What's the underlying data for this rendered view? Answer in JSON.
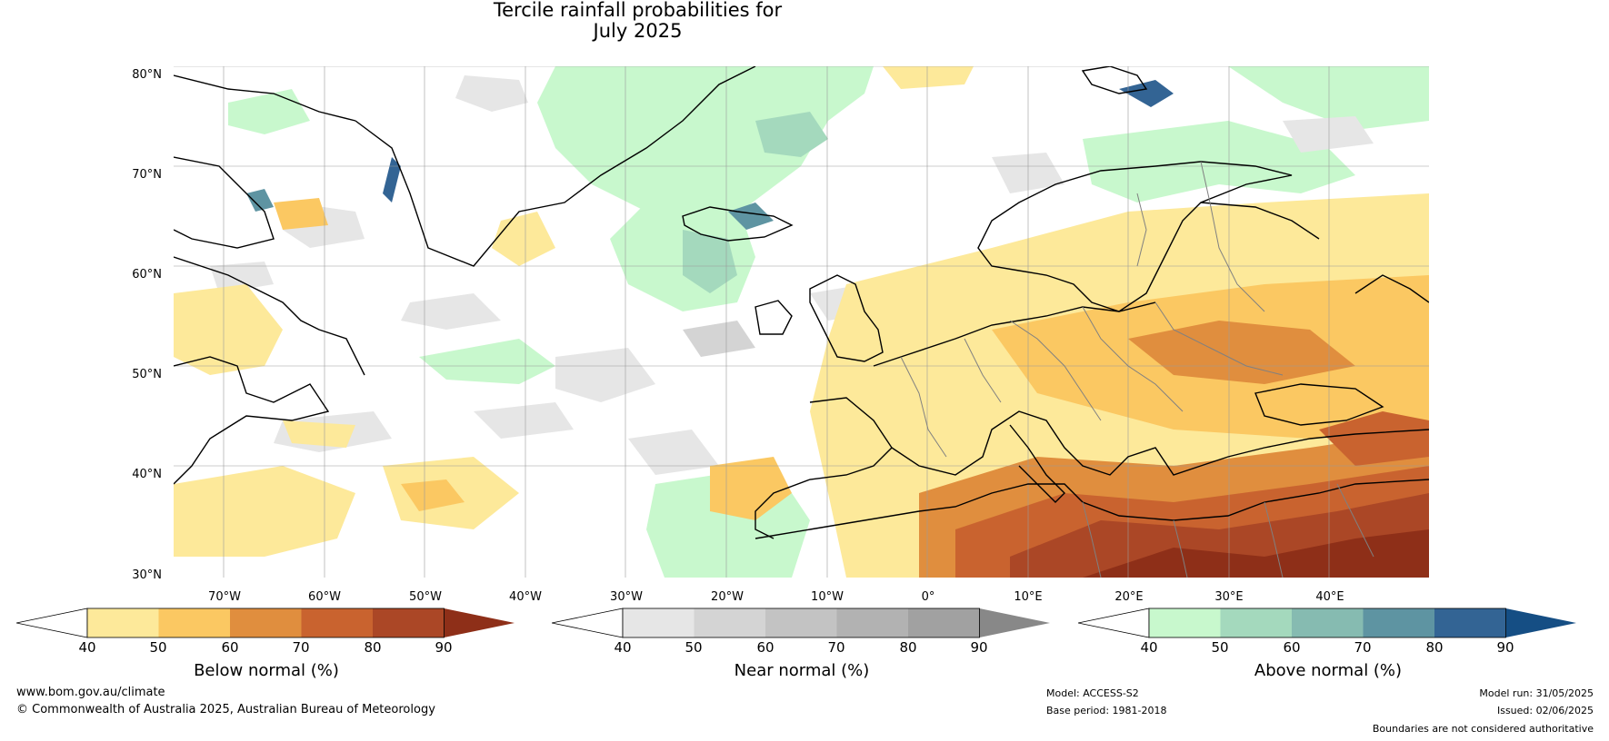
{
  "title": {
    "line1": "Tercile rainfall probabilities for",
    "line2": "July 2025"
  },
  "map": {
    "lat_labels": [
      "80°N",
      "70°N",
      "60°N",
      "50°N",
      "40°N",
      "30°N"
    ],
    "lon_labels": [
      "70°W",
      "60°W",
      "50°W",
      "40°W",
      "30°W",
      "20°W",
      "10°W",
      "0°",
      "10°E",
      "20°E",
      "30°E",
      "40°E"
    ]
  },
  "colorbars": [
    {
      "name": "below",
      "title": "Below normal (%)",
      "ticks": [
        "40",
        "50",
        "60",
        "70",
        "80",
        "90"
      ],
      "colors": [
        "#ffffff",
        "#fde99a",
        "#fbc862",
        "#e08e3e",
        "#c9632f",
        "#ab4726",
        "#8e2f18"
      ]
    },
    {
      "name": "near",
      "title": "Near normal (%)",
      "ticks": [
        "40",
        "50",
        "60",
        "70",
        "80",
        "90"
      ],
      "colors": [
        "#ffffff",
        "#e6e6e6",
        "#d4d4d4",
        "#c3c3c3",
        "#b2b2b2",
        "#a1a1a1",
        "#888888"
      ]
    },
    {
      "name": "above",
      "title": "Above normal (%)",
      "ticks": [
        "40",
        "50",
        "60",
        "70",
        "80",
        "90"
      ],
      "colors": [
        "#ffffff",
        "#c8f8cd",
        "#a4d9bd",
        "#86bbb1",
        "#5e94a2",
        "#336494",
        "#154e84"
      ]
    }
  ],
  "footer": {
    "website": "www.bom.gov.au/climate",
    "copyright": "© Commonwealth of Australia 2025, Australian Bureau of Meteorology",
    "model": "Model: ACCESS-S2",
    "base_period": "Base period: 1981-2018",
    "model_run": "Model run: 31/05/2025",
    "issued": "Issued: 02/06/2025",
    "disclaimer": "Boundaries are not considered authoritative"
  }
}
